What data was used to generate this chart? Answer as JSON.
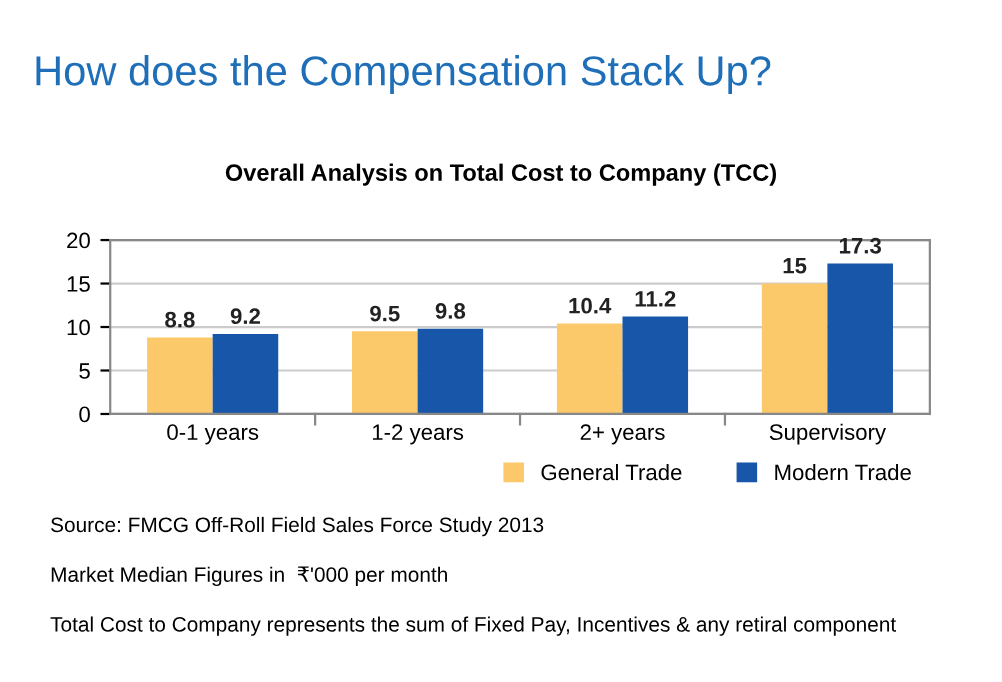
{
  "chart_data": {
    "type": "bar",
    "title": "How does the Compensation Stack Up?",
    "subtitle": "Overall Analysis on Total Cost to Company (TCC)",
    "categories": [
      "0-1 years",
      "1-2 years",
      "2+ years",
      "Supervisory"
    ],
    "series": [
      {
        "name": "General Trade",
        "color": "#fcc96a",
        "values": [
          8.8,
          9.5,
          10.4,
          15
        ]
      },
      {
        "name": "Modern Trade",
        "color": "#1756a9",
        "values": [
          9.2,
          9.8,
          11.2,
          17.3
        ]
      }
    ],
    "ylim": [
      0,
      20
    ],
    "yticks": [
      0,
      5,
      10,
      15,
      20
    ],
    "grid": "y",
    "legend": "bottom right",
    "data_labels": true,
    "annotations": [
      "Source: FMCG Off-Roll Field Sales Force Study 2013",
      "Market Median Figures in  ₹'000 per month",
      "Total Cost to Company represents the sum of Fixed Pay, Incentives & any retiral component"
    ]
  }
}
